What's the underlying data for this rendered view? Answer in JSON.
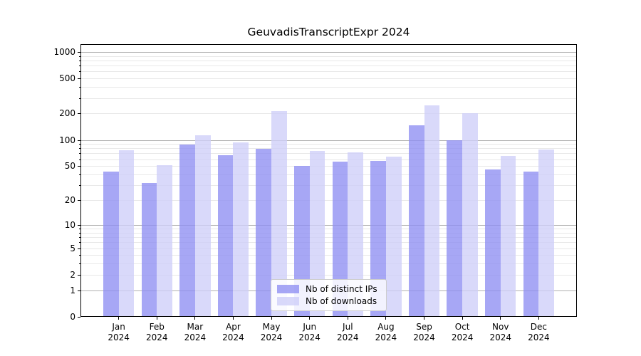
{
  "chart_data": {
    "type": "bar",
    "title": "GeuvadisTranscriptExpr 2024",
    "categories": [
      "Jan 2024",
      "Feb 2024",
      "Mar 2024",
      "Apr 2024",
      "May 2024",
      "Jun 2024",
      "Jul 2024",
      "Aug 2024",
      "Sep 2024",
      "Oct 2024",
      "Nov 2024",
      "Dec 2024"
    ],
    "series": [
      {
        "name": "Nb of distinct IPs",
        "color": "#8e8ef2",
        "alpha": 0.78,
        "values": [
          43,
          32,
          89,
          67,
          79,
          50,
          56,
          57,
          147,
          100,
          46,
          43
        ]
      },
      {
        "name": "Nb of downloads",
        "color": "#cecef9",
        "alpha": 0.78,
        "values": [
          76,
          51,
          113,
          93,
          213,
          75,
          72,
          64,
          248,
          200,
          65,
          78
        ]
      }
    ],
    "yscale": "log1p",
    "ylim": [
      0,
      1226
    ],
    "yticks": [
      0,
      1,
      2,
      5,
      10,
      20,
      50,
      100,
      200,
      500,
      1000
    ],
    "grid": "horizontal",
    "grid_major_color": "#b0b0b0",
    "grid_minor_color": "#e8e8e8",
    "legend_position": "lower center",
    "xlabel": "",
    "ylabel": ""
  }
}
